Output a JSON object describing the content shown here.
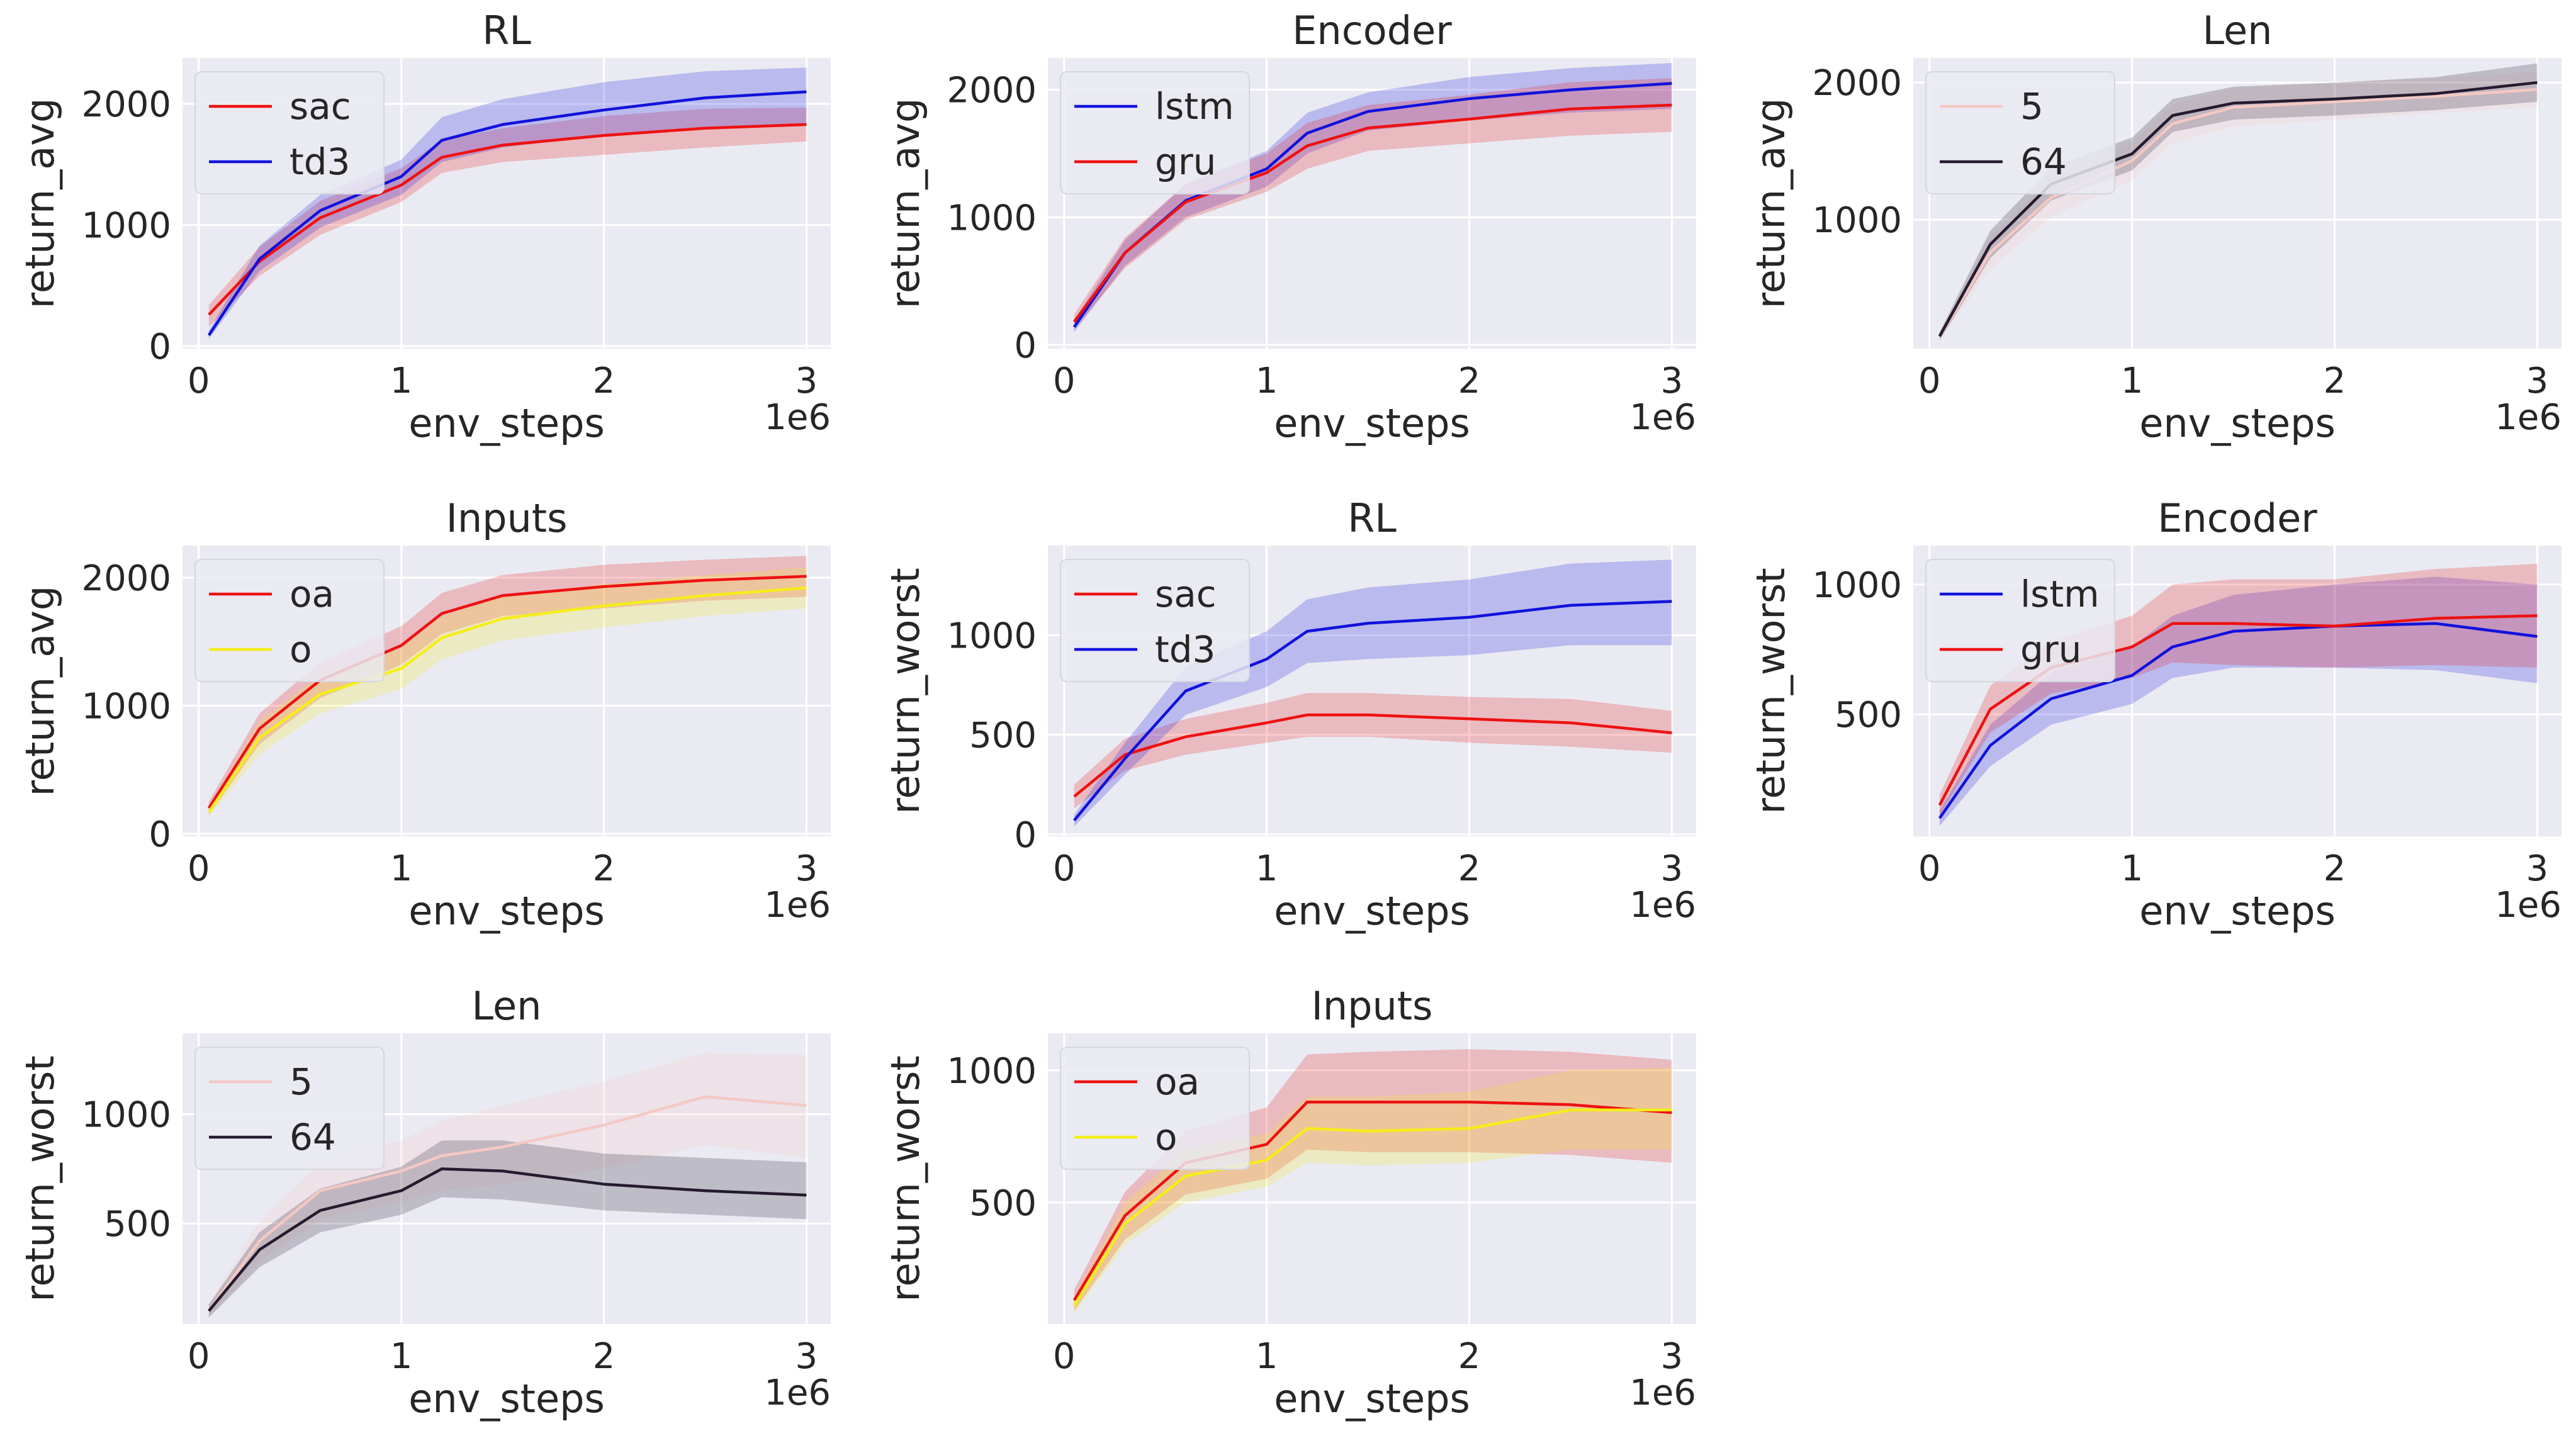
{
  "figure": {
    "xlabel": "env_steps",
    "x_offset_label": "1e6",
    "x_ticks": [
      0,
      1,
      2,
      3
    ],
    "x_tick_labels": [
      "0",
      "1",
      "2",
      "3"
    ],
    "x_range": [
      -0.08,
      3.12
    ]
  },
  "colors": {
    "background": "#eaeaf2",
    "grid": "#ffffff",
    "sac": "#ee1111",
    "td3": "#1111dd",
    "lstm": "#1111dd",
    "gru": "#ee1111",
    "len5": "#f4c8c4",
    "len64": "#241b2f",
    "oa": "#ee1111",
    "o": "#f5ed1a"
  },
  "chart_data": [
    {
      "type": "line",
      "title": "RL",
      "xlabel": "env_steps",
      "ylabel": "return_avg",
      "ylim": [
        -20,
        2380
      ],
      "yticks": [
        0,
        1000,
        2000
      ],
      "ytick_labels": [
        "0",
        "1000",
        "2000"
      ],
      "x": [
        0.05,
        0.3,
        0.6,
        1.0,
        1.2,
        1.5,
        2.0,
        2.5,
        3.0
      ],
      "series": [
        {
          "name": "sac",
          "color": "#ee1111",
          "values": [
            260,
            700,
            1060,
            1330,
            1560,
            1660,
            1740,
            1800,
            1830
          ],
          "lower": [
            160,
            580,
            920,
            1190,
            1430,
            1520,
            1580,
            1640,
            1690
          ],
          "upper": [
            340,
            820,
            1200,
            1470,
            1700,
            1800,
            1900,
            1960,
            1970
          ]
        },
        {
          "name": "td3",
          "color": "#1111dd",
          "values": [
            90,
            720,
            1120,
            1400,
            1700,
            1830,
            1950,
            2050,
            2100
          ],
          "lower": [
            60,
            620,
            980,
            1250,
            1520,
            1640,
            1740,
            1800,
            1820
          ],
          "upper": [
            130,
            830,
            1250,
            1540,
            1890,
            2040,
            2180,
            2270,
            2300
          ]
        }
      ]
    },
    {
      "type": "line",
      "title": "Encoder",
      "xlabel": "env_steps",
      "ylabel": "return_avg",
      "ylim": [
        -30,
        2250
      ],
      "yticks": [
        0,
        1000,
        2000
      ],
      "ytick_labels": [
        "0",
        "1000",
        "2000"
      ],
      "x": [
        0.05,
        0.3,
        0.6,
        1.0,
        1.2,
        1.5,
        2.0,
        2.5,
        3.0
      ],
      "series": [
        {
          "name": "lstm",
          "color": "#1111dd",
          "values": [
            140,
            720,
            1130,
            1380,
            1660,
            1830,
            1930,
            2000,
            2050
          ],
          "lower": [
            100,
            620,
            1000,
            1240,
            1500,
            1680,
            1760,
            1820,
            1850
          ],
          "upper": [
            190,
            820,
            1260,
            1520,
            1820,
            1980,
            2100,
            2170,
            2210
          ]
        },
        {
          "name": "gru",
          "color": "#ee1111",
          "values": [
            180,
            720,
            1120,
            1350,
            1560,
            1700,
            1770,
            1850,
            1880
          ],
          "lower": [
            120,
            600,
            980,
            1200,
            1380,
            1520,
            1580,
            1640,
            1670
          ],
          "upper": [
            240,
            840,
            1260,
            1500,
            1740,
            1880,
            1960,
            2060,
            2090
          ]
        }
      ]
    },
    {
      "type": "line",
      "title": "Len",
      "xlabel": "env_steps",
      "ylabel": "return_avg",
      "ylim": [
        60,
        2180
      ],
      "yticks": [
        1000,
        2000
      ],
      "ytick_labels": [
        "1000",
        "2000"
      ],
      "x": [
        0.05,
        0.3,
        0.6,
        1.0,
        1.2,
        1.5,
        2.0,
        2.5,
        3.0
      ],
      "series": [
        {
          "name": "5",
          "color": "#f4c8c4",
          "values": [
            150,
            760,
            1160,
            1430,
            1700,
            1820,
            1860,
            1900,
            1950
          ],
          "lower": [
            120,
            640,
            1020,
            1290,
            1560,
            1680,
            1730,
            1780,
            1820
          ],
          "upper": [
            180,
            880,
            1300,
            1570,
            1840,
            1960,
            2000,
            2030,
            2080
          ]
        },
        {
          "name": "64",
          "color": "#241b2f",
          "values": [
            150,
            820,
            1260,
            1480,
            1760,
            1850,
            1880,
            1920,
            2000
          ],
          "lower": [
            120,
            720,
            1140,
            1360,
            1640,
            1730,
            1760,
            1800,
            1860
          ],
          "upper": [
            180,
            920,
            1380,
            1600,
            1880,
            1970,
            2000,
            2040,
            2140
          ]
        }
      ]
    },
    {
      "type": "line",
      "title": "Inputs",
      "xlabel": "env_steps",
      "ylabel": "return_avg",
      "ylim": [
        -20,
        2250
      ],
      "yticks": [
        0,
        1000,
        2000
      ],
      "ytick_labels": [
        "0",
        "1000",
        "2000"
      ],
      "x": [
        0.05,
        0.3,
        0.6,
        1.0,
        1.2,
        1.5,
        2.0,
        2.5,
        3.0
      ],
      "series": [
        {
          "name": "oa",
          "color": "#ee1111",
          "values": [
            200,
            820,
            1200,
            1470,
            1720,
            1860,
            1930,
            1980,
            2010
          ],
          "lower": [
            150,
            700,
            1060,
            1320,
            1560,
            1700,
            1760,
            1820,
            1850
          ],
          "upper": [
            250,
            940,
            1340,
            1620,
            1880,
            2020,
            2100,
            2140,
            2170
          ]
        },
        {
          "name": "o",
          "color": "#f5ed1a",
          "values": [
            170,
            750,
            1090,
            1290,
            1530,
            1680,
            1780,
            1860,
            1920
          ],
          "lower": [
            130,
            620,
            940,
            1130,
            1360,
            1510,
            1610,
            1700,
            1760
          ],
          "upper": [
            210,
            880,
            1240,
            1450,
            1700,
            1850,
            1950,
            2020,
            2080
          ]
        }
      ]
    },
    {
      "type": "line",
      "title": "RL",
      "xlabel": "env_steps",
      "ylabel": "return_worst",
      "ylim": [
        -10,
        1450
      ],
      "yticks": [
        0,
        500,
        1000
      ],
      "ytick_labels": [
        "0",
        "500",
        "1000"
      ],
      "x": [
        0.05,
        0.3,
        0.6,
        1.0,
        1.2,
        1.5,
        2.0,
        2.5,
        3.0
      ],
      "series": [
        {
          "name": "sac",
          "color": "#ee1111",
          "values": [
            190,
            400,
            490,
            560,
            600,
            600,
            580,
            560,
            510
          ],
          "lower": [
            130,
            320,
            400,
            460,
            490,
            490,
            460,
            440,
            410
          ],
          "upper": [
            250,
            480,
            580,
            660,
            710,
            710,
            690,
            680,
            620
          ]
        },
        {
          "name": "td3",
          "color": "#1111dd",
          "values": [
            70,
            380,
            720,
            880,
            1020,
            1060,
            1090,
            1150,
            1170
          ],
          "lower": [
            40,
            300,
            600,
            740,
            860,
            880,
            900,
            950,
            950
          ],
          "upper": [
            100,
            460,
            840,
            1020,
            1180,
            1240,
            1280,
            1360,
            1380
          ]
        }
      ]
    },
    {
      "type": "line",
      "title": "Encoder",
      "xlabel": "env_steps",
      "ylabel": "return_worst",
      "ylim": [
        30,
        1150
      ],
      "yticks": [
        500,
        1000
      ],
      "ytick_labels": [
        "500",
        "1000"
      ],
      "x": [
        0.05,
        0.3,
        0.6,
        1.0,
        1.2,
        1.5,
        2.0,
        2.5,
        3.0
      ],
      "series": [
        {
          "name": "lstm",
          "color": "#1111dd",
          "values": [
            100,
            380,
            560,
            650,
            760,
            820,
            840,
            850,
            800
          ],
          "lower": [
            70,
            300,
            460,
            540,
            640,
            680,
            680,
            670,
            620
          ],
          "upper": [
            130,
            460,
            660,
            760,
            880,
            960,
            1000,
            1030,
            1000
          ]
        },
        {
          "name": "gru",
          "color": "#ee1111",
          "values": [
            150,
            520,
            680,
            760,
            850,
            850,
            840,
            870,
            880
          ],
          "lower": [
            110,
            430,
            580,
            640,
            700,
            690,
            680,
            690,
            680
          ],
          "upper": [
            190,
            610,
            780,
            880,
            1000,
            1020,
            1020,
            1060,
            1080
          ]
        }
      ]
    },
    {
      "type": "line",
      "title": "Len",
      "xlabel": "env_steps",
      "ylabel": "return_worst",
      "ylim": [
        40,
        1370
      ],
      "yticks": [
        500,
        1000
      ],
      "ytick_labels": [
        "500",
        "1000"
      ],
      "x": [
        0.05,
        0.3,
        0.6,
        1.0,
        1.2,
        1.5,
        2.0,
        2.5,
        3.0
      ],
      "series": [
        {
          "name": "5",
          "color": "#f4c8c4",
          "values": [
            100,
            420,
            650,
            740,
            810,
            850,
            950,
            1080,
            1040
          ],
          "lower": [
            70,
            330,
            520,
            600,
            650,
            680,
            750,
            860,
            800
          ],
          "upper": [
            130,
            510,
            780,
            880,
            970,
            1040,
            1150,
            1280,
            1270
          ]
        },
        {
          "name": "64",
          "color": "#241b2f",
          "values": [
            100,
            380,
            560,
            650,
            750,
            740,
            680,
            650,
            630
          ],
          "lower": [
            70,
            300,
            460,
            540,
            620,
            610,
            560,
            540,
            520
          ],
          "upper": [
            130,
            460,
            660,
            760,
            880,
            880,
            820,
            800,
            780
          ]
        }
      ]
    },
    {
      "type": "line",
      "title": "Inputs",
      "xlabel": "env_steps",
      "ylabel": "return_worst",
      "ylim": [
        40,
        1140
      ],
      "yticks": [
        500,
        1000
      ],
      "ytick_labels": [
        "500",
        "1000"
      ],
      "x": [
        0.05,
        0.3,
        0.6,
        1.0,
        1.2,
        1.5,
        2.0,
        2.5,
        3.0
      ],
      "series": [
        {
          "name": "oa",
          "color": "#ee1111",
          "values": [
            130,
            450,
            650,
            720,
            880,
            880,
            880,
            870,
            840
          ],
          "lower": [
            90,
            360,
            530,
            590,
            700,
            690,
            690,
            680,
            650
          ],
          "upper": [
            170,
            540,
            770,
            860,
            1060,
            1070,
            1080,
            1070,
            1040
          ]
        },
        {
          "name": "o",
          "color": "#f5ed1a",
          "values": [
            110,
            420,
            600,
            660,
            780,
            770,
            780,
            850,
            850
          ],
          "lower": [
            80,
            340,
            500,
            560,
            650,
            640,
            650,
            700,
            700
          ],
          "upper": [
            140,
            500,
            700,
            760,
            900,
            900,
            920,
            1000,
            1010
          ]
        }
      ]
    }
  ]
}
